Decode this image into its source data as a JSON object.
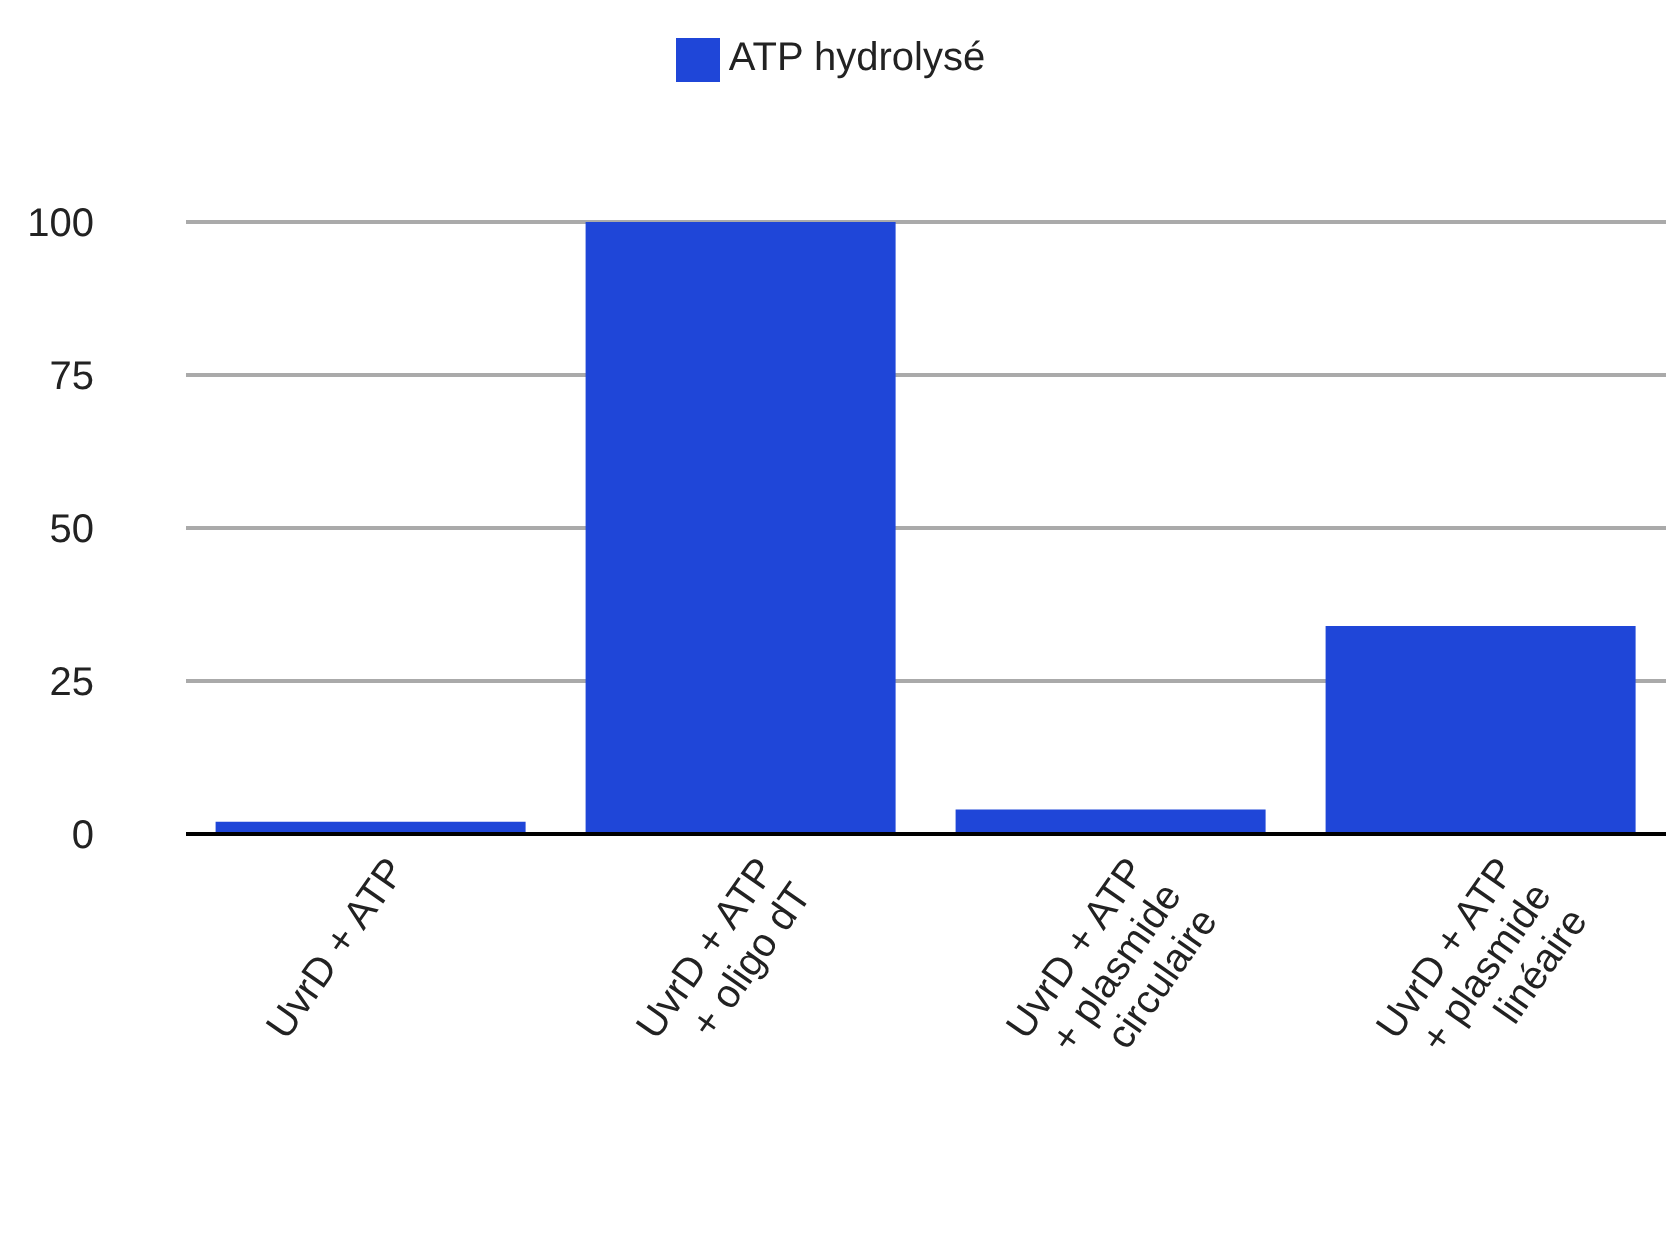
{
  "chart_data": {
    "type": "bar",
    "categories": [
      "UvrD + ATP",
      "UvrD + ATP\n+ oligo dT",
      "UvrD + ATP\n+ plasmide\ncirculaire",
      "UvrD + ATP\n+ plasmide\nlinéaire"
    ],
    "series": [
      {
        "name": "ATP hydrolysé",
        "color": "#1f46d8",
        "values": [
          2,
          100,
          4,
          34
        ]
      }
    ],
    "ylim": [
      0,
      100
    ],
    "yticks": [
      0,
      25,
      50,
      75,
      100
    ],
    "grid": "y",
    "legend": "top"
  }
}
